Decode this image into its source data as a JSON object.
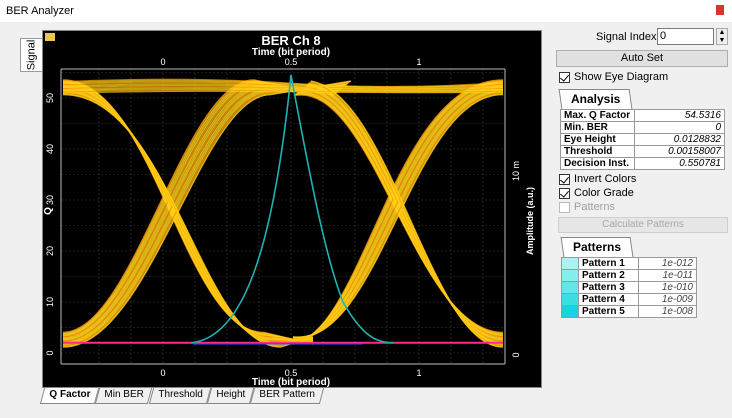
{
  "window": {
    "title": "BER Analyzer"
  },
  "left_tab": "Signal",
  "plot": {
    "title": "BER Ch 8",
    "x_label_top": "Time (bit period)",
    "x_label_bottom": "Time (bit period)",
    "y_label_left": "Q",
    "y_label_right": "Amplitude (a.u.)",
    "right_unit": "10 m",
    "x_ticks": [
      "0",
      "0.5",
      "1"
    ],
    "y_ticks": [
      "50",
      "40",
      "30",
      "20",
      "10",
      "0"
    ],
    "right_ticks": [
      "0"
    ],
    "colors": {
      "eye": "#ffd21a",
      "eye_edge": "#ff9a00",
      "q_curve": "#1fb3b3",
      "ber_line": "#ff2a8a",
      "ber_line2": "#4a4aff",
      "grid": "#3a3a3a"
    }
  },
  "bottom_tabs": [
    {
      "label": "Q Factor",
      "active": true
    },
    {
      "label": "Min BER",
      "active": false
    },
    {
      "label": "Threshold",
      "active": false
    },
    {
      "label": "Height",
      "active": false
    },
    {
      "label": "BER Pattern",
      "active": false
    }
  ],
  "controls": {
    "signal_index_label": "Signal Index:",
    "signal_index_value": "0",
    "auto_set": "Auto Set",
    "show_eye": "Show Eye Diagram",
    "invert_colors": "Invert Colors",
    "color_grade": "Color Grade",
    "patterns_chk": "Patterns",
    "calc_patterns": "Calculate Patterns"
  },
  "analysis": {
    "tab": "Analysis",
    "rows": [
      {
        "k": "Max. Q Factor",
        "v": "54.5316"
      },
      {
        "k": "Min. BER",
        "v": "0"
      },
      {
        "k": "Eye Height",
        "v": "0.0128832"
      },
      {
        "k": "Threshold",
        "v": "0.00158007"
      },
      {
        "k": "Decision Inst.",
        "v": "0.550781"
      }
    ]
  },
  "patterns": {
    "tab": "Patterns",
    "rows": [
      {
        "k": "Pattern 1",
        "v": "1e-012",
        "color": "#a9f3f3"
      },
      {
        "k": "Pattern 2",
        "v": "1e-011",
        "color": "#86eeee"
      },
      {
        "k": "Pattern 3",
        "v": "1e-010",
        "color": "#63e6ea"
      },
      {
        "k": "Pattern 4",
        "v": "1e-009",
        "color": "#3ddde6"
      },
      {
        "k": "Pattern 5",
        "v": "1e-008",
        "color": "#18d3e2"
      }
    ]
  }
}
